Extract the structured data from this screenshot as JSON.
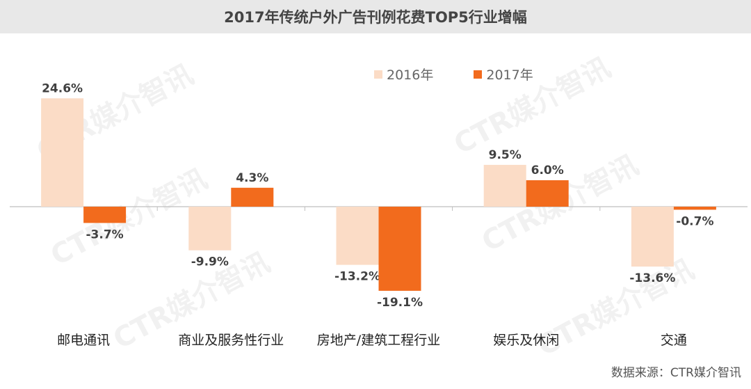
{
  "title": "2017年传统户外广告刊例花费TOP5行业增幅",
  "source_text": "数据来源：CTR媒介智讯",
  "watermark_text": "CTR媒介智讯",
  "colors": {
    "series_2016": "#fbdcc6",
    "series_2017": "#f26b1d",
    "axis": "#bfbfbf",
    "label": "#404040",
    "category_label": "#222222"
  },
  "chart_data": {
    "type": "bar",
    "title": "2017年传统户外广告刊例花费TOP5行业增幅",
    "categories": [
      "邮电通讯",
      "商业及服务性行业",
      "房地产/建筑工程行业",
      "娱乐及休闲",
      "交通"
    ],
    "series": [
      {
        "name": "2016年",
        "values": [
          24.6,
          -9.9,
          -13.2,
          9.5,
          -13.6
        ],
        "labels": [
          "24.6%",
          "-9.9%",
          "-13.2%",
          "9.5%",
          "-13.6%"
        ]
      },
      {
        "name": "2017年",
        "values": [
          -3.7,
          4.3,
          -19.1,
          6.0,
          -0.7
        ],
        "labels": [
          "-3.7%",
          "4.3%",
          "-19.1%",
          "6.0%",
          "-0.7%"
        ]
      }
    ],
    "unit": "%",
    "legend_position": "top-right",
    "grid": false,
    "ylim": [
      -19.1,
      24.6
    ]
  }
}
